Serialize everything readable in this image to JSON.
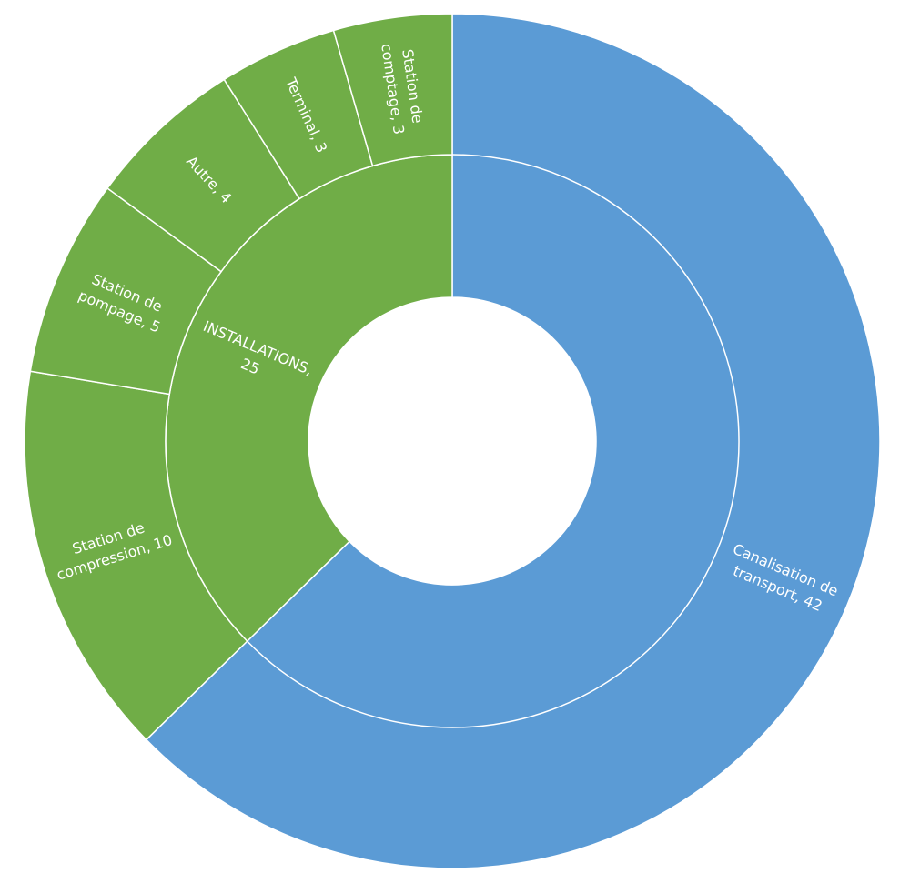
{
  "chart_data": {
    "type": "sunburst",
    "nodes": [
      {
        "label": "Canalisation de transport, 42",
        "value": 42,
        "color": "#5b9bd5"
      },
      {
        "label": "INSTALLATIONS, 25",
        "value": 25,
        "color": "#70ad47",
        "children": [
          {
            "label": "Station de compression, 10",
            "value": 10
          },
          {
            "label": "Station de pompage, 5",
            "value": 5
          },
          {
            "label": "Autre, 4",
            "value": 4
          },
          {
            "label": "Terminal, 3",
            "value": 3
          },
          {
            "label": "Station de comptage, 3",
            "value": 3
          }
        ]
      }
    ]
  }
}
